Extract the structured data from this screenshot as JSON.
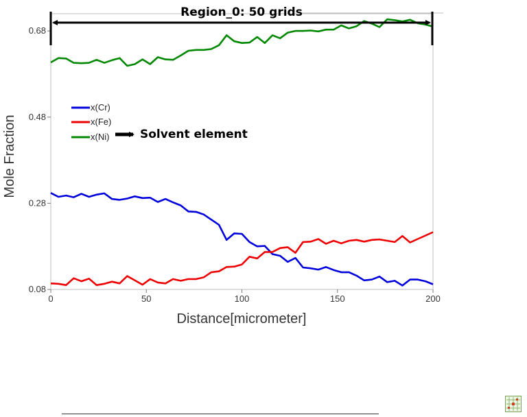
{
  "chart_data": {
    "type": "line",
    "title": "",
    "xlabel": "Distance[micrometer]",
    "ylabel": "Mole Fraction",
    "xlim": [
      0,
      200
    ],
    "ylim": [
      0.08,
      0.72
    ],
    "xticks": [
      0,
      50,
      100,
      150,
      200
    ],
    "yticks": [
      0.08,
      0.28,
      0.48,
      0.68
    ],
    "ytick_labels": [
      "0.08",
      "0.28",
      "0.48",
      "0.68"
    ],
    "grid": false,
    "legend_position": "upper-left",
    "region_annotation": "Region_0: 50 grids",
    "solvent_annotation": "Solvent element",
    "x": [
      0,
      4,
      8,
      12,
      16,
      20,
      24,
      28,
      32,
      36,
      40,
      44,
      48,
      52,
      56,
      60,
      64,
      68,
      72,
      76,
      80,
      84,
      88,
      92,
      96,
      100,
      104,
      108,
      112,
      116,
      120,
      124,
      128,
      132,
      136,
      140,
      144,
      148,
      152,
      156,
      160,
      164,
      168,
      172,
      176,
      180,
      184,
      188,
      192,
      196,
      200
    ],
    "series": [
      {
        "name": "x(Cr)",
        "color": "#0000dd",
        "values": [
          0.304,
          0.295,
          0.298,
          0.294,
          0.302,
          0.295,
          0.3,
          0.303,
          0.29,
          0.288,
          0.291,
          0.296,
          0.292,
          0.293,
          0.283,
          0.29,
          0.282,
          0.275,
          0.261,
          0.26,
          0.254,
          0.242,
          0.23,
          0.195,
          0.21,
          0.209,
          0.19,
          0.18,
          0.181,
          0.162,
          0.158,
          0.144,
          0.153,
          0.131,
          0.129,
          0.126,
          0.132,
          0.125,
          0.12,
          0.12,
          0.112,
          0.101,
          0.103,
          0.11,
          0.097,
          0.1,
          0.089,
          0.103,
          0.103,
          0.099,
          0.092
        ]
      },
      {
        "name": "x(Fe)",
        "color": "#ee0000",
        "values": [
          0.094,
          0.093,
          0.09,
          0.106,
          0.099,
          0.105,
          0.09,
          0.093,
          0.098,
          0.094,
          0.111,
          0.101,
          0.091,
          0.104,
          0.096,
          0.094,
          0.104,
          0.1,
          0.104,
          0.104,
          0.108,
          0.12,
          0.122,
          0.132,
          0.133,
          0.138,
          0.156,
          0.152,
          0.167,
          0.167,
          0.176,
          0.178,
          0.165,
          0.19,
          0.191,
          0.197,
          0.186,
          0.193,
          0.187,
          0.193,
          0.195,
          0.191,
          0.195,
          0.196,
          0.193,
          0.19,
          0.204,
          0.189,
          0.197,
          0.205,
          0.213
        ]
      },
      {
        "name": "x(Ni)",
        "color": "#008800",
        "values": [
          0.607,
          0.617,
          0.616,
          0.606,
          0.605,
          0.606,
          0.613,
          0.606,
          0.612,
          0.617,
          0.599,
          0.603,
          0.614,
          0.603,
          0.619,
          0.614,
          0.613,
          0.623,
          0.634,
          0.636,
          0.636,
          0.638,
          0.647,
          0.67,
          0.656,
          0.652,
          0.653,
          0.666,
          0.652,
          0.67,
          0.663,
          0.676,
          0.68,
          0.68,
          0.681,
          0.679,
          0.683,
          0.683,
          0.693,
          0.686,
          0.691,
          0.703,
          0.697,
          0.689,
          0.707,
          0.705,
          0.702,
          0.706,
          0.698,
          0.695,
          0.69
        ]
      }
    ]
  },
  "icon": "grid-icon"
}
